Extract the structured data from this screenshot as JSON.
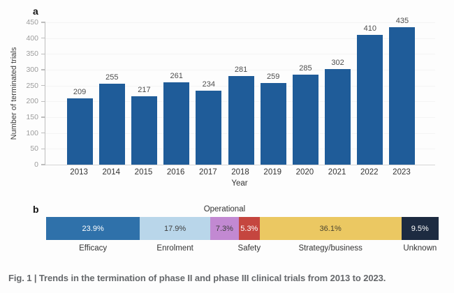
{
  "figure": {
    "panel_a_label": "a",
    "panel_b_label": "b",
    "caption": "Fig. 1 | Trends in the termination of phase II and phase III clinical trials from 2013 to 2023."
  },
  "chart_data": [
    {
      "type": "bar",
      "panel": "a",
      "xlabel": "Year",
      "ylabel": "Number of terminated trials",
      "categories": [
        "2013",
        "2014",
        "2015",
        "2016",
        "2017",
        "2018",
        "2019",
        "2020",
        "2021",
        "2022",
        "2023"
      ],
      "values": [
        209,
        255,
        217,
        261,
        234,
        281,
        259,
        285,
        302,
        410,
        435
      ],
      "ylim": [
        0,
        450
      ],
      "ytick_step": 50,
      "bar_color": "#1f5c99",
      "grid": "faint-horizontal",
      "legend_position": "none"
    },
    {
      "type": "bar",
      "panel": "b",
      "orientation": "horizontal-stacked",
      "unit": "percent",
      "segments": [
        {
          "label": "Efficacy",
          "value": 23.9,
          "display": "23.9%",
          "color": "#2f71aa",
          "text_color": "#ffffff",
          "label_position": "below"
        },
        {
          "label": "Enrolment",
          "value": 17.9,
          "display": "17.9%",
          "color": "#b9d6ea",
          "text_color": "#3d3d3d",
          "label_position": "below"
        },
        {
          "label": "Operational",
          "value": 7.3,
          "display": "7.3%",
          "color": "#c289d2",
          "text_color": "#3d3d3d",
          "label_position": "above"
        },
        {
          "label": "Safety",
          "value": 5.3,
          "display": "5.3%",
          "color": "#c5463f",
          "text_color": "#ffffff",
          "label_position": "below"
        },
        {
          "label": "Strategy/business",
          "value": 36.1,
          "display": "36.1%",
          "color": "#ebc862",
          "text_color": "#4a4430",
          "label_position": "below"
        },
        {
          "label": "Unknown",
          "value": 9.5,
          "display": "9.5%",
          "color": "#1d2b41",
          "text_color": "#ffffff",
          "label_position": "below"
        }
      ]
    }
  ]
}
